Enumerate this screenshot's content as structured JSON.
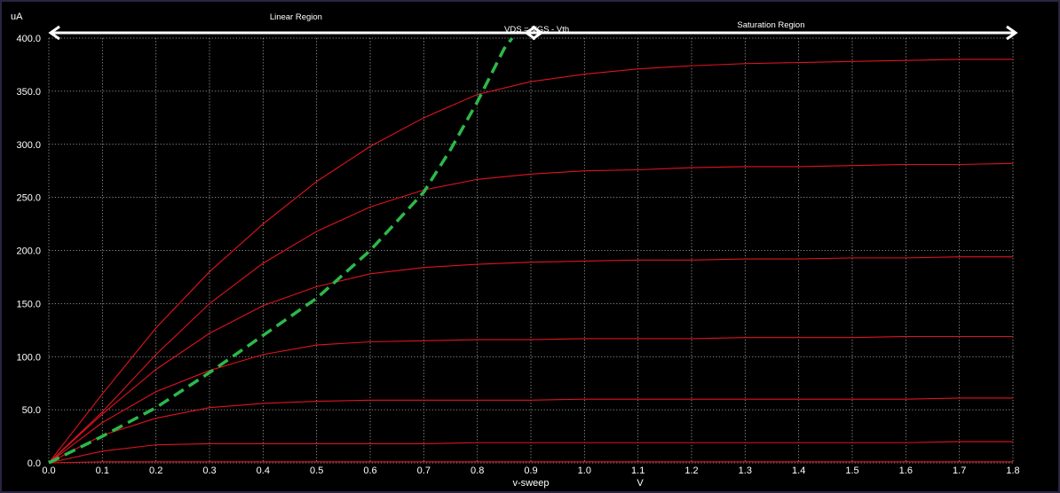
{
  "chart_data": {
    "type": "line",
    "yunit": "uA",
    "xlabel": "v-sweep",
    "xunit": "V",
    "xlim": [
      0,
      1.8
    ],
    "ylim": [
      0,
      400
    ],
    "grid": true,
    "x_ticks": [
      "0.0",
      "0.1",
      "0.2",
      "0.3",
      "0.4",
      "0.5",
      "0.6",
      "0.7",
      "0.8",
      "0.9",
      "1.0",
      "1.1",
      "1.2",
      "1.3",
      "1.4",
      "1.5",
      "1.6",
      "1.7",
      "1.8"
    ],
    "y_ticks": [
      "0.0",
      "50.0",
      "100.0",
      "150.0",
      "200.0",
      "250.0",
      "300.0",
      "350.0",
      "400.0"
    ],
    "series": [
      {
        "color": "#e0141e",
        "x": [
          0,
          0.1,
          0.2,
          0.3,
          0.4,
          0.5,
          0.6,
          0.7,
          0.8,
          0.9,
          1.0,
          1.1,
          1.2,
          1.3,
          1.4,
          1.5,
          1.6,
          1.7,
          1.8
        ],
        "y": [
          0,
          65,
          127,
          180,
          225,
          265,
          298,
          325,
          347,
          359,
          366,
          371,
          374,
          376,
          377,
          378,
          379,
          380,
          380
        ]
      },
      {
        "color": "#e0141e",
        "x": [
          0,
          0.1,
          0.2,
          0.3,
          0.4,
          0.5,
          0.6,
          0.7,
          0.8,
          0.9,
          1.0,
          1.1,
          1.2,
          1.3,
          1.4,
          1.5,
          1.6,
          1.7,
          1.8
        ],
        "y": [
          0,
          48,
          102,
          150,
          188,
          218,
          241,
          257,
          267,
          272,
          275,
          276,
          278,
          279,
          279,
          280,
          281,
          281,
          282
        ]
      },
      {
        "color": "#e0141e",
        "x": [
          0,
          0.1,
          0.2,
          0.3,
          0.4,
          0.5,
          0.6,
          0.7,
          0.8,
          0.9,
          1.0,
          1.1,
          1.2,
          1.3,
          1.4,
          1.5,
          1.6,
          1.7,
          1.8
        ],
        "y": [
          0,
          46,
          88,
          122,
          148,
          166,
          178,
          184,
          187,
          189,
          190,
          191,
          191,
          192,
          192,
          193,
          193,
          194,
          194
        ]
      },
      {
        "color": "#e0141e",
        "x": [
          0,
          0.1,
          0.2,
          0.3,
          0.4,
          0.5,
          0.6,
          0.7,
          0.8,
          0.9,
          1.0,
          1.1,
          1.2,
          1.3,
          1.4,
          1.5,
          1.6,
          1.7,
          1.8
        ],
        "y": [
          0,
          38,
          67,
          87,
          102,
          111,
          114,
          115,
          116,
          116,
          117,
          117,
          117,
          118,
          118,
          118,
          119,
          119,
          119
        ]
      },
      {
        "color": "#e0141e",
        "x": [
          0,
          0.1,
          0.2,
          0.3,
          0.4,
          0.5,
          0.6,
          0.7,
          0.8,
          0.9,
          1.0,
          1.1,
          1.2,
          1.3,
          1.4,
          1.5,
          1.6,
          1.7,
          1.8
        ],
        "y": [
          0,
          26,
          42,
          52,
          56,
          58,
          59,
          59,
          59,
          59,
          60,
          60,
          60,
          60,
          60,
          60,
          60,
          61,
          61
        ]
      },
      {
        "color": "#e0141e",
        "x": [
          0,
          0.1,
          0.2,
          0.3,
          0.4,
          0.5,
          0.6,
          0.7,
          0.8,
          0.9,
          1.0,
          1.1,
          1.2,
          1.3,
          1.4,
          1.5,
          1.6,
          1.7,
          1.8
        ],
        "y": [
          0,
          11,
          17,
          18,
          18,
          18,
          18,
          18,
          19,
          19,
          19,
          19,
          19,
          19,
          19,
          19,
          19,
          20,
          20
        ]
      },
      {
        "color": "#e0141e",
        "x": [
          0,
          0.1,
          0.2,
          0.3,
          0.4,
          0.5,
          0.6,
          0.7,
          0.8,
          0.9,
          1.0,
          1.1,
          1.2,
          1.3,
          1.4,
          1.5,
          1.6,
          1.7,
          1.8
        ],
        "y": [
          0,
          1,
          1,
          1,
          1,
          1,
          1,
          1,
          1,
          1,
          1,
          1,
          1,
          1,
          1,
          1,
          1,
          1,
          1
        ]
      }
    ],
    "boundary": {
      "label": "VDS = VGS - Vth",
      "color": "#2db84a",
      "x": [
        0,
        0.1,
        0.2,
        0.3,
        0.4,
        0.5,
        0.6,
        0.7,
        0.75,
        0.8,
        0.85,
        0.865
      ],
      "y": [
        0,
        25,
        52,
        85,
        120,
        155,
        200,
        255,
        295,
        340,
        390,
        400
      ]
    },
    "annotations": {
      "linear": {
        "label": "Linear Region",
        "x_start": 0.0,
        "x_end": 0.84
      },
      "saturation": {
        "label": "Saturation Region",
        "x_start": 0.88,
        "x_end": 1.8
      }
    }
  }
}
